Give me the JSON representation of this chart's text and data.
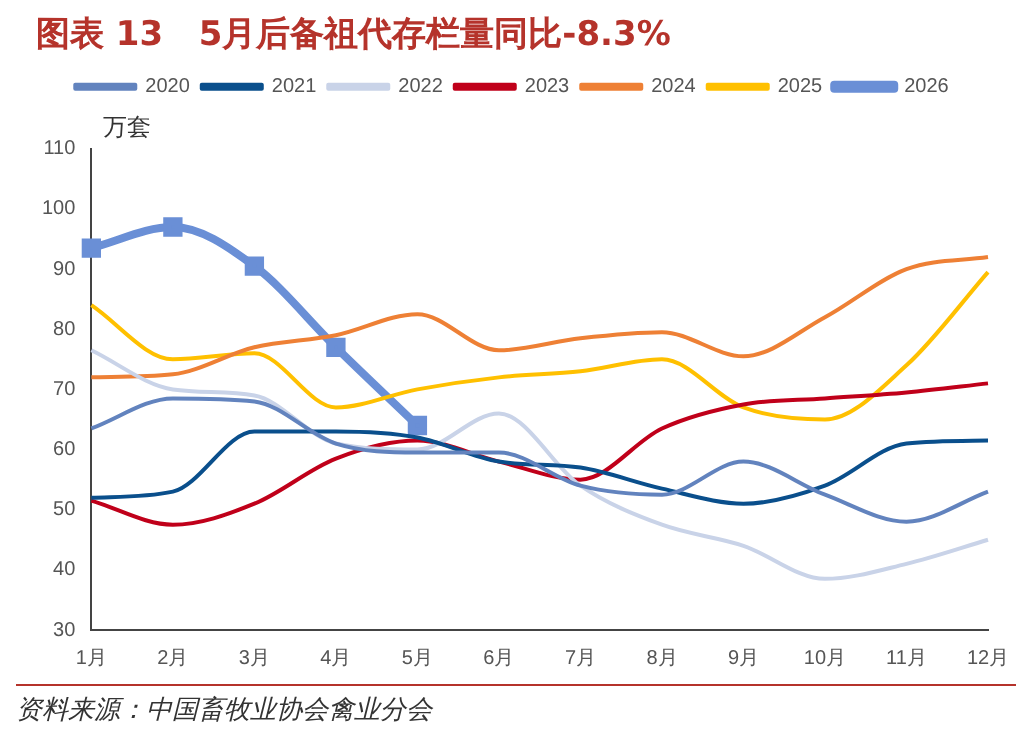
{
  "chart_data": {
    "type": "line",
    "title": "图表 13   5月后备祖代存栏量同比-8.3%",
    "ylabel": "万套",
    "annotations": [
      "资料来源：中国畜牧业协会禽业分会"
    ],
    "categories": [
      "1月",
      "2月",
      "3月",
      "4月",
      "5月",
      "6月",
      "7月",
      "8月",
      "9月",
      "10月",
      "11月",
      "12月"
    ],
    "ylim": [
      30,
      110
    ],
    "yticks": [
      30,
      40,
      50,
      60,
      70,
      80,
      90,
      100,
      110
    ],
    "grid": false,
    "legend": "top",
    "marker": "none",
    "series": [
      {
        "name": "2020",
        "color": "#6283be",
        "values": [
          63.5,
          68.5,
          68,
          61,
          59.5,
          59.5,
          54,
          52.5,
          58,
          52.5,
          48,
          53
        ]
      },
      {
        "name": "2021",
        "color": "#0a4f8c",
        "values": [
          52,
          53,
          63,
          63,
          62,
          58,
          57,
          53.5,
          51,
          54,
          61,
          61.5
        ]
      },
      {
        "name": "2022",
        "color": "#c9d3e8",
        "values": [
          76.5,
          70,
          69,
          61,
          60,
          66,
          54,
          47.5,
          44,
          38.5,
          41,
          45
        ]
      },
      {
        "name": "2023",
        "color": "#c0001a",
        "values": [
          51.5,
          47.5,
          51,
          58.5,
          61.5,
          58,
          55,
          63.5,
          67.5,
          68.5,
          69.5,
          71
        ]
      },
      {
        "name": "2024",
        "color": "#ee8035",
        "values": [
          72,
          72.5,
          77,
          79,
          82.5,
          76.5,
          78.5,
          79.5,
          75.5,
          82,
          90,
          92
        ]
      },
      {
        "name": "2025",
        "color": "#ffc000",
        "values": [
          84,
          75,
          76,
          67,
          70,
          72,
          73,
          75,
          67,
          65,
          74,
          89.5
        ]
      },
      {
        "name": "2026",
        "color": "#6a8fd6",
        "marker": "square",
        "values": [
          93.5,
          97,
          90.5,
          77,
          64,
          null,
          null,
          null,
          null,
          null,
          null,
          null
        ]
      }
    ]
  }
}
